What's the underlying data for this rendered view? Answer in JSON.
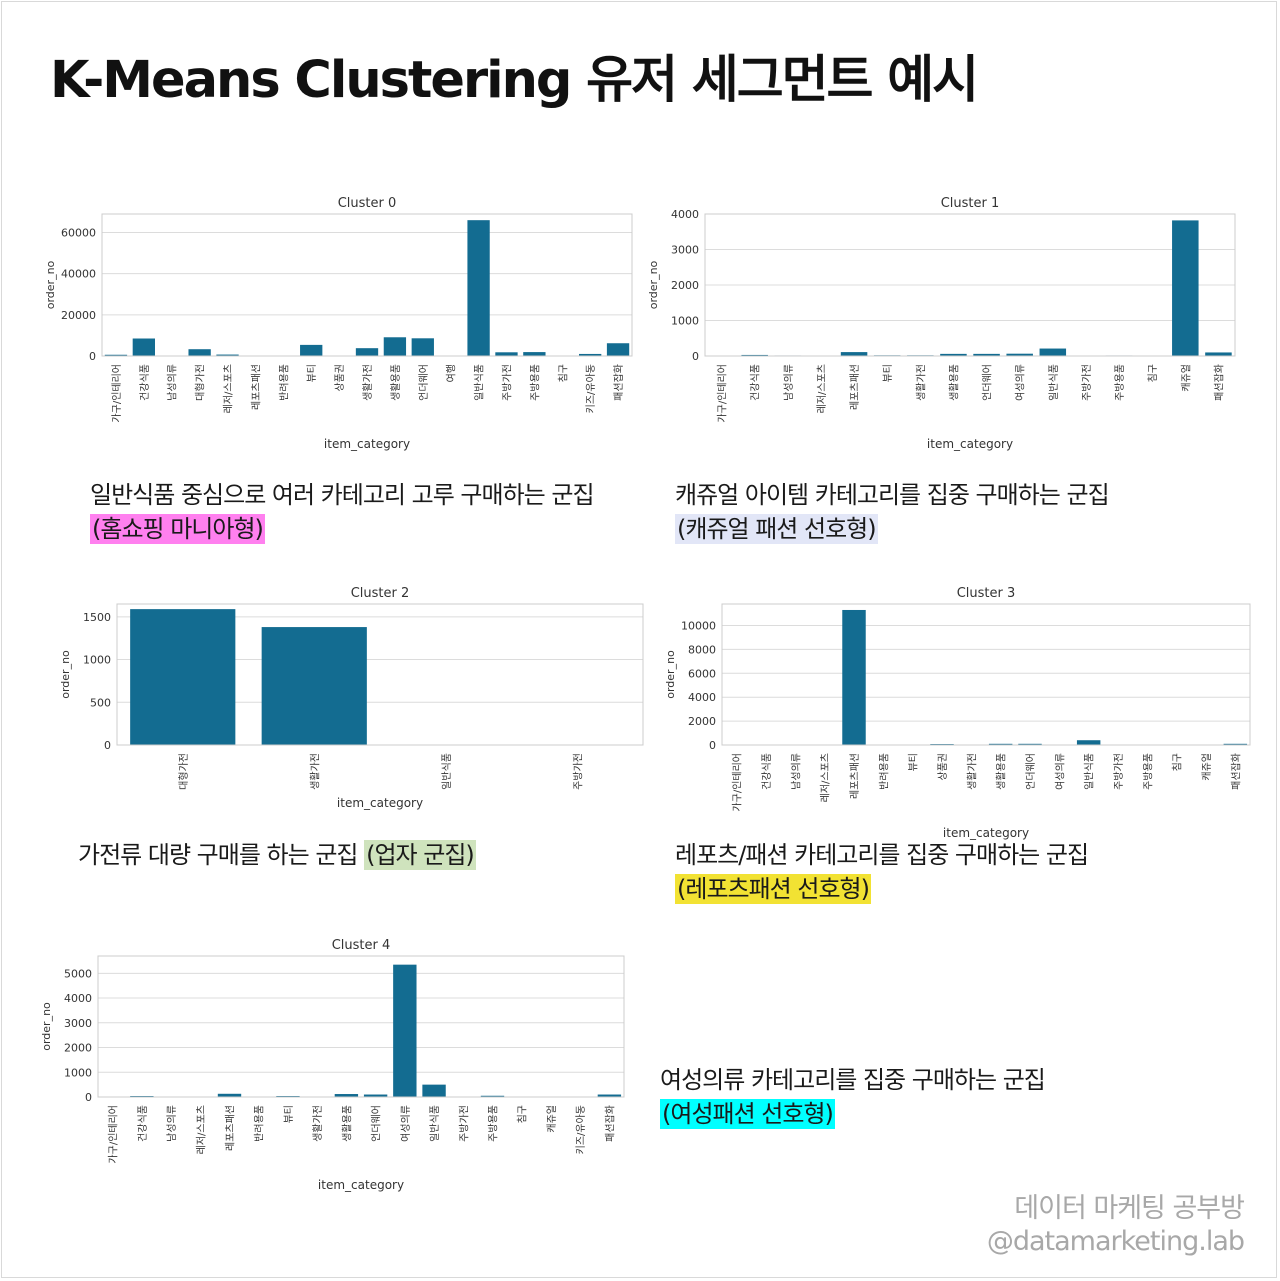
{
  "page": {
    "title": "K-Means Clustering 유저 세그먼트 예시",
    "brand_name": "데이터 마케팅 공부방",
    "brand_handle": "@datamarketing.lab"
  },
  "colors": {
    "bar": "#136c91",
    "grid": "#dcdcdc",
    "hl_pink": "#ff80ef",
    "hl_lavender": "#e2e6f7",
    "hl_green": "#cfe3bd",
    "hl_yellow": "#f2e233",
    "hl_cyan": "#00ffff"
  },
  "descriptions": [
    {
      "line1": "일반식품 중심으로 여러 카테고리 고루 구매하는 군집",
      "before": "",
      "highlight": "(홈쇼핑 마니아형)",
      "hl_color": "#ff80ef"
    },
    {
      "line1": "캐쥬얼 아이템 카테고리를 집중 구매하는 군집",
      "before": "",
      "highlight": "(캐쥬얼 패션 선호형)",
      "hl_color": "#e2e6f7"
    },
    {
      "line1": "",
      "before": "가전류 대량 구매를 하는 군집 ",
      "highlight": "(업자 군집)",
      "hl_color": "#cfe3bd"
    },
    {
      "line1": "레포츠/패션 카테고리를 집중 구매하는 군집",
      "before": "",
      "highlight": "(레포츠패션 선호형)",
      "hl_color": "#f2e233"
    },
    {
      "line1": "여성의류 카테고리를 집중 구매하는 군집",
      "before": "",
      "highlight": "(여성패션 선호형)",
      "hl_color": "#00ffff"
    }
  ],
  "chart_data": [
    {
      "type": "bar",
      "title": "Cluster 0",
      "xlabel": "item_category",
      "ylabel": "order_no",
      "ylim": [
        0,
        69000
      ],
      "yticks": [
        0,
        20000,
        40000,
        60000
      ],
      "grid": true,
      "categories": [
        "가구/인테리어",
        "건강식품",
        "남성의류",
        "대형가전",
        "레저/스포츠",
        "레포츠패션",
        "반려용품",
        "뷰티",
        "상품권",
        "생활가전",
        "생활용품",
        "언더웨어",
        "여행",
        "일반식품",
        "주방가전",
        "주방용품",
        "침구",
        "키즈/유아동",
        "패션잡화"
      ],
      "values": [
        600,
        8500,
        200,
        3300,
        700,
        0,
        0,
        5400,
        150,
        3800,
        9100,
        8600,
        0,
        66000,
        1800,
        1900,
        200,
        1000,
        6200
      ]
    },
    {
      "type": "bar",
      "title": "Cluster 1",
      "xlabel": "item_category",
      "ylabel": "order_no",
      "ylim": [
        0,
        4000
      ],
      "yticks": [
        0,
        1000,
        2000,
        3000,
        4000
      ],
      "grid": true,
      "categories": [
        "가구/인테리어",
        "건강식품",
        "남성의류",
        "레저/스포츠",
        "레포츠패션",
        "뷰티",
        "생활가전",
        "생활용품",
        "언더웨어",
        "여성의류",
        "일반식품",
        "주방가전",
        "주방용품",
        "침구",
        "캐쥬얼",
        "패션잡화"
      ],
      "values": [
        0,
        30,
        15,
        0,
        110,
        20,
        20,
        60,
        60,
        65,
        210,
        0,
        15,
        0,
        3820,
        100
      ]
    },
    {
      "type": "bar",
      "title": "Cluster 2",
      "xlabel": "item_category",
      "ylabel": "order_no",
      "ylim": [
        0,
        1650
      ],
      "yticks": [
        0,
        500,
        1000,
        1500
      ],
      "grid": true,
      "categories": [
        "대형가전",
        "생활가전",
        "일반식품",
        "주방가전"
      ],
      "values": [
        1590,
        1380,
        0,
        0
      ]
    },
    {
      "type": "bar",
      "title": "Cluster 3",
      "xlabel": "item_category",
      "ylabel": "order_no",
      "ylim": [
        0,
        11800
      ],
      "yticks": [
        0,
        2000,
        4000,
        6000,
        8000,
        10000
      ],
      "grid": true,
      "categories": [
        "가구/인테리어",
        "건강식품",
        "남성의류",
        "레저/스포츠",
        "레포츠패션",
        "반려용품",
        "뷰티",
        "상품권",
        "생활가전",
        "생활용품",
        "언더웨어",
        "여성의류",
        "일반식품",
        "주방가전",
        "주방용품",
        "침구",
        "캐쥬얼",
        "패션잡화"
      ],
      "values": [
        0,
        0,
        0,
        0,
        11300,
        0,
        0,
        80,
        0,
        100,
        100,
        0,
        400,
        0,
        0,
        0,
        0,
        100
      ]
    },
    {
      "type": "bar",
      "title": "Cluster 4",
      "xlabel": "item_category",
      "ylabel": "order_no",
      "ylim": [
        0,
        5700
      ],
      "yticks": [
        0,
        1000,
        2000,
        3000,
        4000,
        5000
      ],
      "grid": true,
      "categories": [
        "가구/인테리어",
        "건강식품",
        "남성의류",
        "레저/스포츠",
        "레포츠패션",
        "반려용품",
        "뷰티",
        "생활가전",
        "생활용품",
        "언더웨어",
        "여성의류",
        "일반식품",
        "주방가전",
        "주방용품",
        "침구",
        "캐쥬얼",
        "키즈/유아동",
        "패션잡화"
      ],
      "values": [
        0,
        40,
        0,
        0,
        130,
        0,
        40,
        0,
        120,
        100,
        5350,
        500,
        0,
        50,
        0,
        0,
        0,
        100
      ]
    }
  ]
}
